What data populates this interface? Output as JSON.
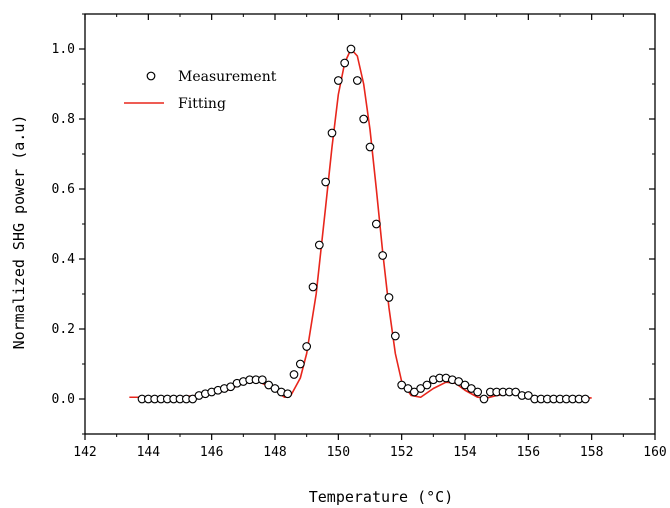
{
  "chart_data": {
    "type": "scatter",
    "title": "",
    "xlabel": "Temperature (°C)",
    "ylabel": "Normalized SHG power (a.u)",
    "xlim": [
      142,
      160
    ],
    "ylim": [
      -0.1,
      1.1
    ],
    "x_ticks": [
      142,
      144,
      146,
      148,
      150,
      152,
      154,
      156,
      158,
      160
    ],
    "y_ticks": [
      0.0,
      0.2,
      0.4,
      0.6,
      0.8,
      1.0
    ],
    "x_tick_labels": [
      "142",
      "144",
      "146",
      "148",
      "150",
      "152",
      "154",
      "156",
      "158",
      "160"
    ],
    "y_tick_labels": [
      "0.0",
      "0.2",
      "0.4",
      "0.6",
      "0.8",
      "1.0"
    ],
    "grid": false,
    "legend_position": "top-left",
    "series": [
      {
        "name": "Measurement",
        "kind": "scatter",
        "marker": "open-circle",
        "color": "#000000",
        "x": [
          143.8,
          144.0,
          144.2,
          144.4,
          144.6,
          144.8,
          145.0,
          145.2,
          145.4,
          145.6,
          145.8,
          146.0,
          146.2,
          146.4,
          146.6,
          146.8,
          147.0,
          147.2,
          147.4,
          147.6,
          147.8,
          148.0,
          148.2,
          148.4,
          148.6,
          148.8,
          149.0,
          149.2,
          149.4,
          149.6,
          149.8,
          150.0,
          150.2,
          150.4,
          150.6,
          150.8,
          151.0,
          151.2,
          151.4,
          151.6,
          151.8,
          152.0,
          152.2,
          152.4,
          152.6,
          152.8,
          153.0,
          153.2,
          153.4,
          153.6,
          153.8,
          154.0,
          154.2,
          154.4,
          154.6,
          154.8,
          155.0,
          155.2,
          155.4,
          155.6,
          155.8,
          156.0,
          156.2,
          156.4,
          156.6,
          156.8,
          157.0,
          157.2,
          157.4,
          157.6,
          157.8
        ],
        "y": [
          0.0,
          0.0,
          0.0,
          0.0,
          0.0,
          0.0,
          0.0,
          0.0,
          0.0,
          0.01,
          0.015,
          0.02,
          0.025,
          0.03,
          0.035,
          0.045,
          0.05,
          0.055,
          0.055,
          0.055,
          0.04,
          0.03,
          0.02,
          0.015,
          0.07,
          0.1,
          0.15,
          0.32,
          0.44,
          0.62,
          0.76,
          0.91,
          0.96,
          1.0,
          0.91,
          0.8,
          0.72,
          0.5,
          0.41,
          0.29,
          0.18,
          0.04,
          0.03,
          0.02,
          0.03,
          0.04,
          0.055,
          0.06,
          0.06,
          0.055,
          0.05,
          0.04,
          0.03,
          0.02,
          0.0,
          0.02,
          0.02,
          0.02,
          0.02,
          0.02,
          0.01,
          0.01,
          0.0,
          0.0,
          0.0,
          0.0,
          0.0,
          0.0,
          0.0,
          0.0,
          0.0
        ]
      },
      {
        "name": "Fitting",
        "kind": "line",
        "color": "#e8261c",
        "x": [
          143.4,
          144.0,
          144.5,
          145.0,
          145.5,
          146.0,
          146.5,
          147.0,
          147.5,
          148.0,
          148.3,
          148.5,
          148.8,
          149.0,
          149.3,
          149.6,
          149.8,
          150.0,
          150.2,
          150.4,
          150.6,
          150.8,
          151.0,
          151.2,
          151.4,
          151.6,
          151.8,
          152.0,
          152.3,
          152.6,
          153.0,
          153.4,
          153.7,
          154.0,
          154.4,
          154.7,
          155.0,
          155.4,
          155.8,
          156.2,
          156.6,
          157.0,
          157.5,
          158.0
        ],
        "y": [
          0.005,
          0.005,
          0.005,
          0.006,
          0.01,
          0.015,
          0.025,
          0.045,
          0.05,
          0.025,
          0.005,
          0.01,
          0.06,
          0.13,
          0.3,
          0.55,
          0.72,
          0.87,
          0.96,
          1.0,
          0.98,
          0.9,
          0.77,
          0.6,
          0.42,
          0.26,
          0.13,
          0.05,
          0.01,
          0.005,
          0.03,
          0.048,
          0.045,
          0.025,
          0.005,
          0.003,
          0.01,
          0.015,
          0.012,
          0.006,
          0.003,
          0.003,
          0.003,
          0.003
        ]
      }
    ]
  }
}
